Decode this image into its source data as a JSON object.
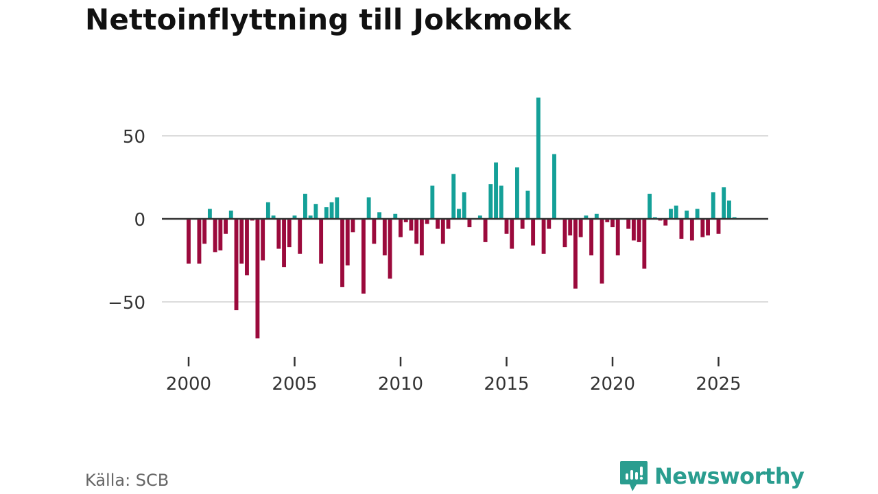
{
  "title": "Nettoinflyttning till Jokkmokk",
  "source": "Källa: SCB",
  "brand": "Newsworthy",
  "colors": {
    "positive": "#14a098",
    "negative": "#9b0a3c",
    "grid": "#dcdcdc",
    "axis": "#333333",
    "text": "#333333",
    "brand": "#2a9d8f"
  },
  "chart_data": {
    "type": "bar",
    "title": "Nettoinflyttning till Jokkmokk",
    "xlabel": "",
    "ylabel": "",
    "ylim": [
      -75,
      75
    ],
    "xlim": [
      1999.4,
      2026.9
    ],
    "yticks": [
      50,
      0,
      -50
    ],
    "ytick_labels": [
      "50",
      "0",
      "−50"
    ],
    "xticks": [
      2000,
      2005,
      2010,
      2015,
      2020,
      2025
    ],
    "xtick_labels": [
      "2000",
      "2005",
      "2010",
      "2015",
      "2020",
      "2025"
    ],
    "bar_width_years": 0.19,
    "gridlines": true,
    "quarters": [
      "2000 Q1",
      "2000 Q2",
      "2000 Q3",
      "2000 Q4",
      "2001 Q1",
      "2001 Q2",
      "2001 Q3",
      "2001 Q4",
      "2002 Q1",
      "2002 Q2",
      "2002 Q3",
      "2002 Q4",
      "2003 Q1",
      "2003 Q2",
      "2003 Q3",
      "2003 Q4",
      "2004 Q1",
      "2004 Q2",
      "2004 Q3",
      "2004 Q4",
      "2005 Q1",
      "2005 Q2",
      "2005 Q3",
      "2005 Q4",
      "2006 Q1",
      "2006 Q2",
      "2006 Q3",
      "2006 Q4",
      "2007 Q1",
      "2007 Q2",
      "2007 Q3",
      "2007 Q4",
      "2008 Q1",
      "2008 Q2",
      "2008 Q3",
      "2008 Q4",
      "2009 Q1",
      "2009 Q2",
      "2009 Q3",
      "2009 Q4",
      "2010 Q1",
      "2010 Q2",
      "2010 Q3",
      "2010 Q4",
      "2011 Q1",
      "2011 Q2",
      "2011 Q3",
      "2011 Q4",
      "2012 Q1",
      "2012 Q2",
      "2012 Q3",
      "2012 Q4",
      "2013 Q1",
      "2013 Q2",
      "2013 Q3",
      "2013 Q4",
      "2014 Q1",
      "2014 Q2",
      "2014 Q3",
      "2014 Q4",
      "2015 Q1",
      "2015 Q2",
      "2015 Q3",
      "2015 Q4",
      "2016 Q1",
      "2016 Q2",
      "2016 Q3",
      "2016 Q4",
      "2017 Q1",
      "2017 Q2",
      "2017 Q3",
      "2017 Q4",
      "2018 Q1",
      "2018 Q2",
      "2018 Q3",
      "2018 Q4",
      "2019 Q1",
      "2019 Q2",
      "2019 Q3",
      "2019 Q4",
      "2020 Q1",
      "2020 Q2",
      "2020 Q3",
      "2020 Q4",
      "2021 Q1",
      "2021 Q2",
      "2021 Q3",
      "2021 Q4",
      "2022 Q1",
      "2022 Q2",
      "2022 Q3",
      "2022 Q4",
      "2023 Q1",
      "2023 Q2",
      "2023 Q3",
      "2023 Q4",
      "2024 Q1",
      "2024 Q2",
      "2024 Q3",
      "2024 Q4",
      "2025 Q1",
      "2025 Q2",
      "2025 Q3",
      "2025 Q4"
    ],
    "values": [
      -27,
      0,
      -27,
      -15,
      6,
      -20,
      -19,
      -9,
      5,
      -55,
      -27,
      -34,
      -1,
      -72,
      -25,
      10,
      2,
      -18,
      -29,
      -17,
      2,
      -21,
      15,
      2,
      9,
      -27,
      7,
      10,
      13,
      -41,
      -28,
      -8,
      0,
      -45,
      13,
      -15,
      4,
      -22,
      -36,
      3,
      -11,
      -2,
      -7,
      -15,
      -22,
      -3,
      20,
      -6,
      -15,
      -6,
      27,
      6,
      16,
      -5,
      0,
      2,
      -14,
      21,
      34,
      20,
      -9,
      -18,
      31,
      -6,
      17,
      -16,
      73,
      -21,
      -6,
      39,
      0,
      -17,
      -10,
      -42,
      -11,
      2,
      -22,
      3,
      -39,
      -2,
      -5,
      -22,
      0,
      -6,
      -13,
      -14,
      -30,
      15,
      1,
      -1,
      -4,
      6,
      8,
      -12,
      5,
      -13,
      6,
      -11,
      -10,
      16,
      -9,
      19,
      11,
      1
    ]
  }
}
